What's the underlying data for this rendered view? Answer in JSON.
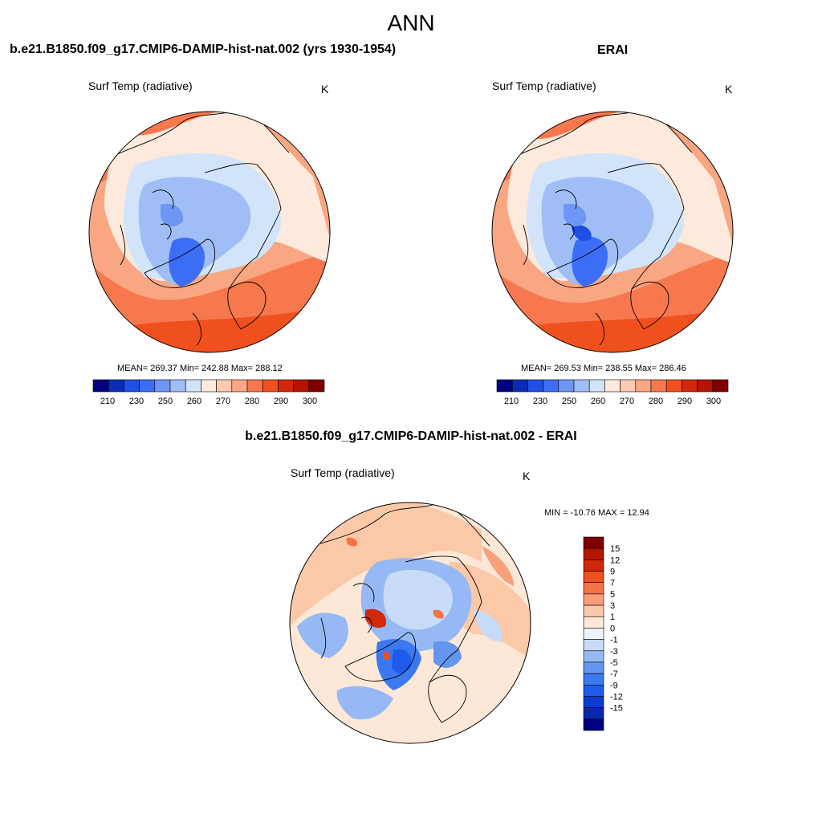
{
  "main_title": "ANN",
  "colors": {
    "abs_scale": [
      "#00007f",
      "#0a2db4",
      "#1e50e6",
      "#3c6ef5",
      "#6e96f5",
      "#a0bef5",
      "#d2e4fa",
      "#fdeadc",
      "#fbcab0",
      "#f9a682",
      "#f7784e",
      "#f0501e",
      "#d2280a",
      "#b41400",
      "#7f0000"
    ],
    "diff_scale": [
      "#00007f",
      "#0a28aa",
      "#0a3cd2",
      "#1e5aeb",
      "#3c78f0",
      "#6496f0",
      "#96b9f5",
      "#c8dcfa",
      "#eef2fc",
      "#fde8d8",
      "#fbc8a8",
      "#f9a07a",
      "#f77346",
      "#f0501e",
      "#d2280a",
      "#b41400",
      "#7f0000"
    ]
  },
  "panels": {
    "left": {
      "title": "b.e21.B1850.f09_g17.CMIP6-DAMIP-hist-nat.002 (yrs 1930-1954)",
      "variable": "Surf Temp (radiative)",
      "units": "K",
      "stats": "MEAN= 269.37  Min= 242.88  Max= 288.12"
    },
    "right": {
      "title": "ERAI",
      "variable": "Surf Temp (radiative)",
      "units": "K",
      "stats": "MEAN= 269.53  Min= 238.55  Max= 286.46"
    },
    "diff": {
      "title": "b.e21.B1850.f09_g17.CMIP6-DAMIP-hist-nat.002 - ERAI",
      "variable": "Surf Temp (radiative)",
      "units": "K",
      "stats": "MIN = -10.76 MAX =  12.94"
    }
  },
  "colorbars": {
    "abs_ticks": [
      "210",
      "230",
      "250",
      "260",
      "270",
      "280",
      "290",
      "300"
    ],
    "diff_ticks": [
      "15",
      "12",
      "9",
      "7",
      "5",
      "3",
      "1",
      "0",
      "-1",
      "-3",
      "-5",
      "-7",
      "-9",
      "-12",
      "-15"
    ]
  }
}
